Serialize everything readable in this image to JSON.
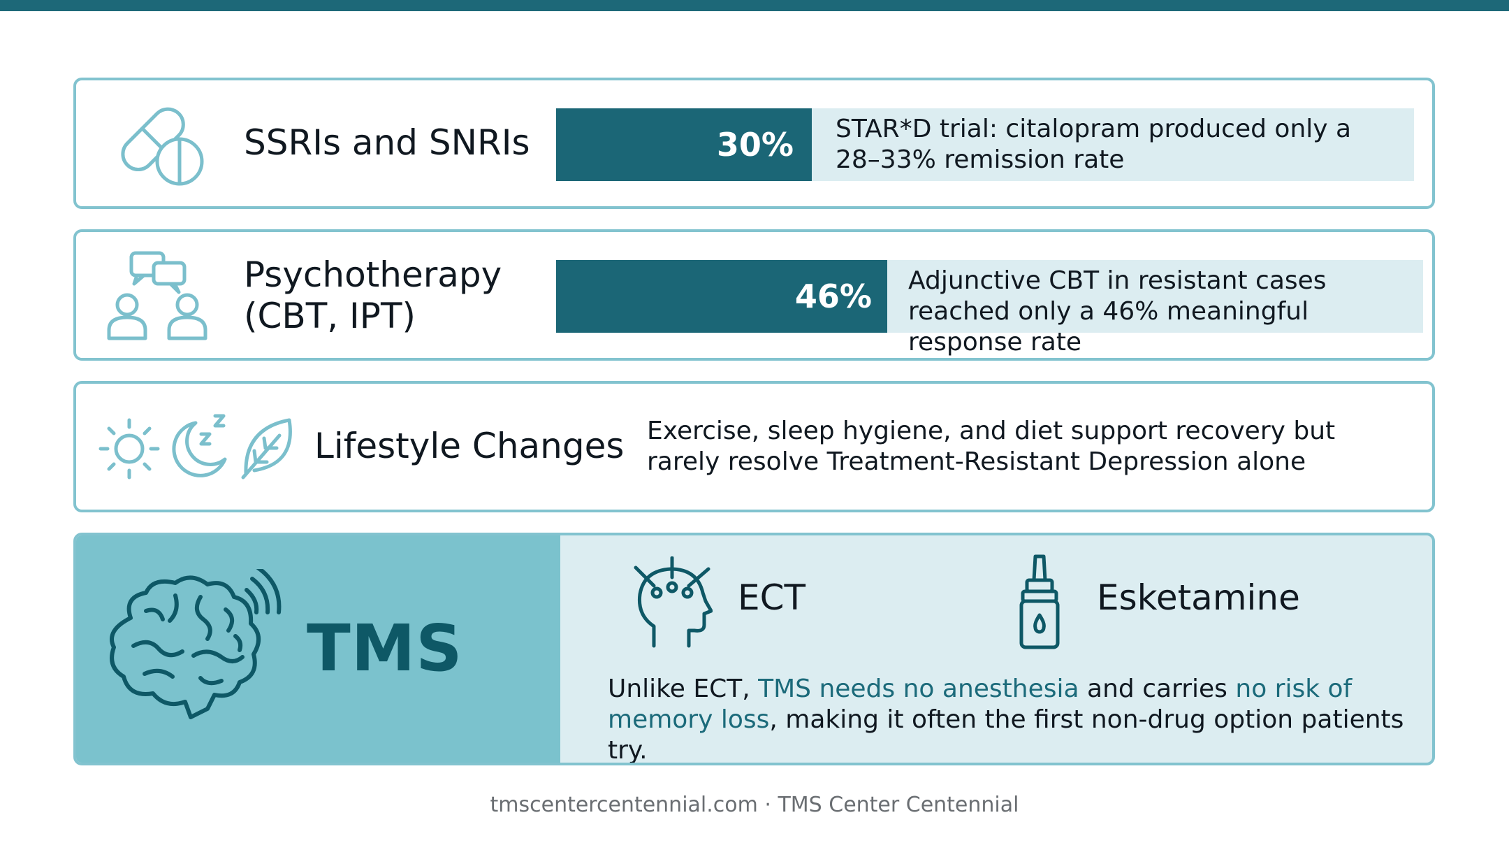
{
  "treatments": [
    {
      "name": "SSRIs and SNRIs",
      "icon": "pill-capsule-icon",
      "percent_label": "30%",
      "percent_value": 30,
      "note": "STAR*D trial: citalopram produced only a 28–33% remission rate"
    },
    {
      "name_line1": "Psychotherapy",
      "name_line2": "(CBT, IPT)",
      "icon": "therapy-conversation-icon",
      "percent_label": "46%",
      "percent_value": 46,
      "note": "Adjunctive CBT in resistant cases reached only a 46% meaningful response rate"
    },
    {
      "name": "Lifestyle Changes",
      "icons": [
        "sun-icon",
        "moon-sleep-icon",
        "leaf-icon"
      ],
      "note": "Exercise, sleep hygiene, and diet support recovery but rarely resolve Treatment-Resistant Depression alone"
    }
  ],
  "tms": {
    "title": "TMS",
    "icon": "brain-waves-icon",
    "alternatives": [
      {
        "label": "ECT",
        "icon": "head-electrodes-icon"
      },
      {
        "label": "Esketamine",
        "icon": "nasal-spray-icon"
      }
    ],
    "para": {
      "p1": "Unlike ECT, ",
      "h1": "TMS needs no anesthesia",
      "p2": " and carries ",
      "h2": "no risk of memory loss",
      "p3": ", making it often the first non-drug option patients try."
    }
  },
  "footer": "tmscentercentennial.com · TMS Center Centennial",
  "colors": {
    "accent_dark": "#1b6676",
    "accent_light": "#7bc2cd",
    "pale": "#dcedf1",
    "border": "#82c3cf"
  }
}
